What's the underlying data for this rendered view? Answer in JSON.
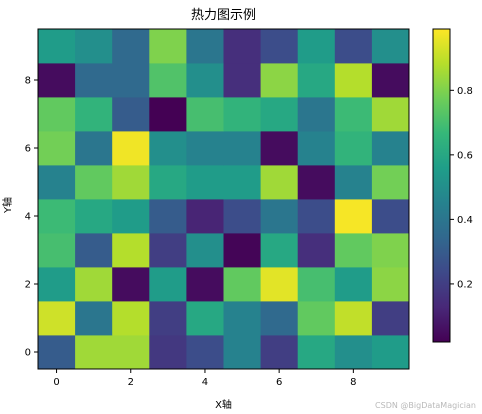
{
  "chart_data": {
    "type": "heatmap",
    "title": "热力图示例",
    "xlabel": "X轴",
    "ylabel": "Y轴",
    "xlim": [
      -0.5,
      9.5
    ],
    "ylim": [
      -0.5,
      9.5
    ],
    "x_ticks": [
      "0",
      "2",
      "4",
      "6",
      "8"
    ],
    "y_ticks": [
      "0",
      "2",
      "4",
      "6",
      "8"
    ],
    "colormap": "viridis",
    "colorbar": {
      "min": 0.02,
      "max": 0.99,
      "ticks": [
        "0.2",
        "0.4",
        "0.6",
        "0.8"
      ]
    },
    "values": [
      [
        0.3,
        0.85,
        0.85,
        0.18,
        0.25,
        0.45,
        0.2,
        0.6,
        0.5,
        0.55
      ],
      [
        0.92,
        0.4,
        0.88,
        0.2,
        0.6,
        0.45,
        0.35,
        0.75,
        0.9,
        0.2
      ],
      [
        0.55,
        0.85,
        0.05,
        0.55,
        0.05,
        0.75,
        0.95,
        0.7,
        0.55,
        0.82
      ],
      [
        0.7,
        0.3,
        0.88,
        0.2,
        0.5,
        0.03,
        0.6,
        0.15,
        0.75,
        0.8
      ],
      [
        0.68,
        0.6,
        0.55,
        0.3,
        0.12,
        0.25,
        0.4,
        0.25,
        0.98,
        0.25
      ],
      [
        0.45,
        0.75,
        0.85,
        0.6,
        0.55,
        0.55,
        0.85,
        0.05,
        0.45,
        0.78
      ],
      [
        0.78,
        0.4,
        0.97,
        0.5,
        0.45,
        0.45,
        0.05,
        0.45,
        0.65,
        0.45
      ],
      [
        0.75,
        0.65,
        0.3,
        0.02,
        0.7,
        0.65,
        0.6,
        0.4,
        0.68,
        0.85
      ],
      [
        0.05,
        0.35,
        0.35,
        0.72,
        0.5,
        0.15,
        0.82,
        0.6,
        0.88,
        0.05
      ],
      [
        0.55,
        0.5,
        0.35,
        0.8,
        0.4,
        0.15,
        0.25,
        0.55,
        0.25,
        0.5
      ]
    ]
  },
  "watermark": "CSDN @BigDataMagician"
}
